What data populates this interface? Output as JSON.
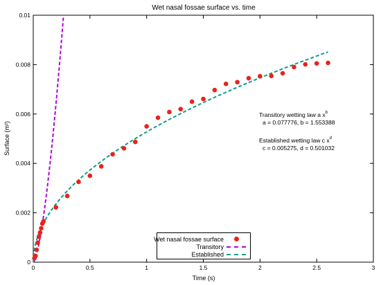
{
  "chart_data": {
    "type": "scatter",
    "title": "Wet nasal fossae surface vs. time",
    "xlabel": "Time (s)",
    "ylabel": "Surface (m²)",
    "xlim": [
      0,
      3
    ],
    "ylim": [
      0,
      0.01
    ],
    "x_ticks": [
      "0",
      "0.5",
      "1",
      "1.5",
      "2",
      "2.5",
      "3"
    ],
    "y_ticks": [
      "0",
      "0.002",
      "0.004",
      "0.006",
      "0.008",
      "0.01"
    ],
    "x_tick_values": [
      0,
      0.5,
      1,
      1.5,
      2,
      2.5,
      3
    ],
    "y_tick_values": [
      0,
      0.002,
      0.004,
      0.006,
      0.008,
      0.01
    ],
    "grid": false,
    "legend_position": "bottom-center",
    "series": [
      {
        "name": "Wet nasal fossae surface",
        "kind": "points",
        "color": "#e8231c",
        "x": [
          0.01,
          0.02,
          0.03,
          0.04,
          0.05,
          0.06,
          0.07,
          0.08,
          0.09,
          0.2,
          0.3,
          0.4,
          0.5,
          0.6,
          0.7,
          0.8,
          0.9,
          1.0,
          1.1,
          1.2,
          1.3,
          1.4,
          1.5,
          1.6,
          1.7,
          1.8,
          1.9,
          2.0,
          2.1,
          2.2,
          2.3,
          2.4,
          2.5,
          2.6
        ],
        "y": [
          0.00016,
          0.00025,
          0.0005,
          0.00079,
          0.00103,
          0.0012,
          0.00137,
          0.00156,
          0.00165,
          0.00222,
          0.00268,
          0.00325,
          0.0035,
          0.00388,
          0.00437,
          0.00461,
          0.00487,
          0.0055,
          0.00585,
          0.00608,
          0.0062,
          0.0065,
          0.00661,
          0.00697,
          0.00722,
          0.00729,
          0.00745,
          0.00753,
          0.00754,
          0.00765,
          0.0079,
          0.00801,
          0.00805,
          0.00807
        ]
      },
      {
        "name": "Transitory",
        "kind": "line",
        "color": "#b000d8",
        "formula": "a*x^b",
        "params": {
          "a": 0.077776,
          "b": 1.553388
        },
        "x_range": [
          0,
          0.27
        ]
      },
      {
        "name": "Established",
        "kind": "line",
        "color": "#0f9e8c",
        "formula": "c*x^d",
        "params": {
          "c": 0.005275,
          "d": 0.501032
        },
        "x_range": [
          0,
          2.6
        ]
      }
    ],
    "annotations": {
      "transitory_law_title": "Transitory wetting law a  x",
      "transitory_law_exp": "b",
      "transitory_law_params": "a = 0.077776, b = 1.553388",
      "established_law_title": "Established wetting law c  x",
      "established_law_exp": "d",
      "established_law_params": "c = 0.005275, d = 0.501032"
    }
  }
}
